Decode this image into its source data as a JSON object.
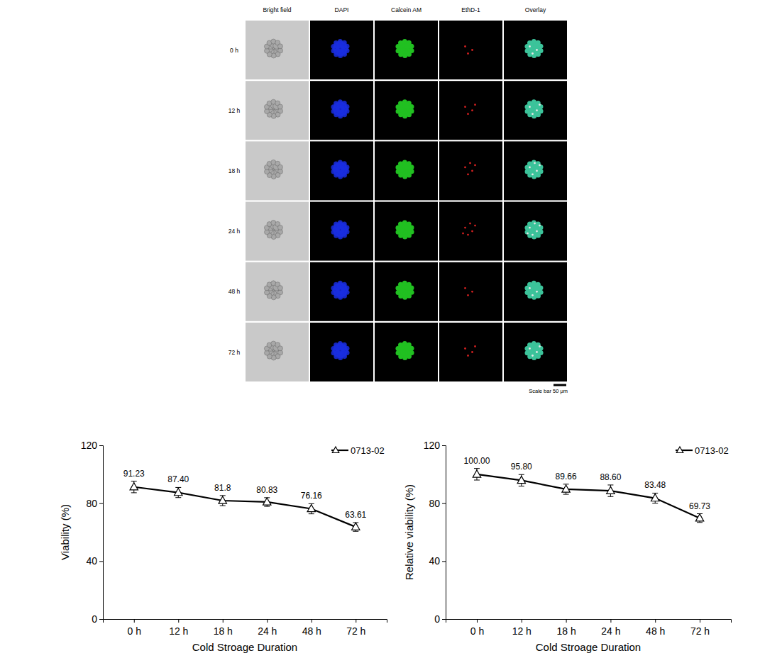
{
  "image_panel": {
    "columns": [
      "Bright field",
      "DAPI",
      "Calcein AM",
      "EthD-1",
      "Overlay"
    ],
    "rows": [
      "0 h",
      "12 h",
      "18 h",
      "24 h",
      "48 h",
      "72 h"
    ],
    "scale_bar": "Scale bar 50 μm"
  },
  "chart_data": [
    {
      "type": "line",
      "x_label": "Cold Stroage Duration",
      "y_label": "Viability (%)",
      "categories": [
        "0 h",
        "12 h",
        "18 h",
        "24 h",
        "48 h",
        "72 h"
      ],
      "series": [
        {
          "name": "0713-02",
          "color": "#000000",
          "marker": "triangle",
          "values": [
            91.23,
            87.4,
            81.8,
            80.83,
            76.16,
            63.61
          ],
          "value_labels": [
            "91.23",
            "87.40",
            "81.8",
            "80.83",
            "76.16",
            "63.61"
          ],
          "errors": [
            4,
            3.5,
            3.5,
            3,
            3.5,
            3
          ]
        }
      ],
      "ylim": [
        0,
        120
      ],
      "yticks": [
        0,
        40,
        80,
        120
      ],
      "data_labels": true,
      "legend": "top-right",
      "grid": false
    },
    {
      "type": "line",
      "x_label": "Cold Stroage Duration",
      "y_label": "Relative viability (%)",
      "categories": [
        "0 h",
        "12 h",
        "18 h",
        "24 h",
        "48 h",
        "72 h"
      ],
      "series": [
        {
          "name": "0713-02",
          "color": "#000000",
          "marker": "triangle",
          "values": [
            100,
            95.8,
            89.66,
            88.6,
            83.48,
            69.73
          ],
          "value_labels": [
            "100.00",
            "95.80",
            "89.66",
            "88.60",
            "83.48",
            "69.73"
          ],
          "errors": [
            4,
            4,
            3.5,
            4,
            3.5,
            3
          ]
        }
      ],
      "ylim": [
        0,
        120
      ],
      "yticks": [
        0,
        40,
        80,
        120
      ],
      "data_labels": true,
      "legend": "top-right",
      "grid": false
    }
  ]
}
